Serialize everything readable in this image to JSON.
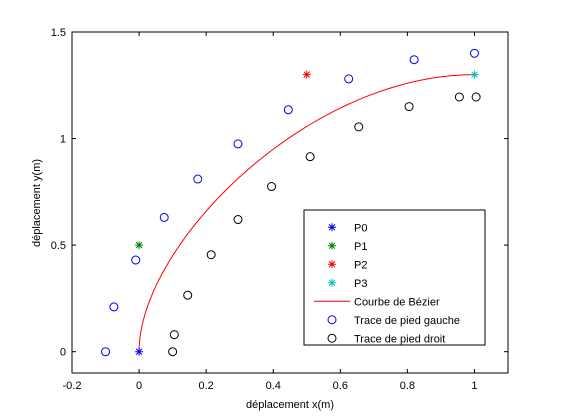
{
  "chart_data": {
    "type": "scatter",
    "title": "",
    "xlabel": "déplacement x(m)",
    "ylabel": "déplacement y(m)",
    "xlim": [
      -0.2,
      1.1
    ],
    "ylim": [
      -0.1,
      1.5
    ],
    "xticks": [
      -0.2,
      0,
      0.2,
      0.4,
      0.6,
      0.8,
      1
    ],
    "xtick_labels": [
      "-0.2",
      "0",
      "0.2",
      "0.4",
      "0.6",
      "0.8",
      "1"
    ],
    "yticks": [
      0,
      0.5,
      1,
      1.5
    ],
    "ytick_labels": [
      "0",
      "0.5",
      "1",
      "1.5"
    ],
    "grid": false,
    "legend_position": "bottom-right",
    "series": [
      {
        "name": "P0",
        "marker": "star",
        "color": "#0000ff",
        "points": [
          [
            0,
            0
          ]
        ]
      },
      {
        "name": "P1",
        "marker": "star",
        "color": "#008000",
        "points": [
          [
            0,
            0.5
          ]
        ]
      },
      {
        "name": "P2",
        "marker": "star",
        "color": "#ff0000",
        "points": [
          [
            0.5,
            1.3
          ]
        ]
      },
      {
        "name": "P3",
        "marker": "star",
        "color": "#00bfbf",
        "points": [
          [
            1,
            1.3
          ]
        ]
      },
      {
        "name": "Courbe de Bézier",
        "marker": "line",
        "color": "#ff0000",
        "control_points": [
          [
            0,
            0
          ],
          [
            0,
            0.5
          ],
          [
            0.5,
            1.3
          ],
          [
            1,
            1.3
          ]
        ]
      },
      {
        "name": "Trace de pied gauche",
        "marker": "circle",
        "color": "#0000ff",
        "points": [
          [
            -0.1,
            0
          ],
          [
            -0.075,
            0.21
          ],
          [
            -0.01,
            0.43
          ],
          [
            0.075,
            0.63
          ],
          [
            0.175,
            0.81
          ],
          [
            0.295,
            0.975
          ],
          [
            0.445,
            1.135
          ],
          [
            0.625,
            1.28
          ],
          [
            0.82,
            1.37
          ],
          [
            1.0,
            1.4
          ]
        ]
      },
      {
        "name": "Trace de pied droit",
        "marker": "circle",
        "color": "#000000",
        "points": [
          [
            0.1,
            0
          ],
          [
            0.105,
            0.08
          ],
          [
            0.145,
            0.265
          ],
          [
            0.215,
            0.455
          ],
          [
            0.295,
            0.62
          ],
          [
            0.395,
            0.775
          ],
          [
            0.51,
            0.915
          ],
          [
            0.655,
            1.055
          ],
          [
            0.805,
            1.15
          ],
          [
            0.955,
            1.195
          ],
          [
            1.005,
            1.195
          ]
        ]
      }
    ]
  }
}
